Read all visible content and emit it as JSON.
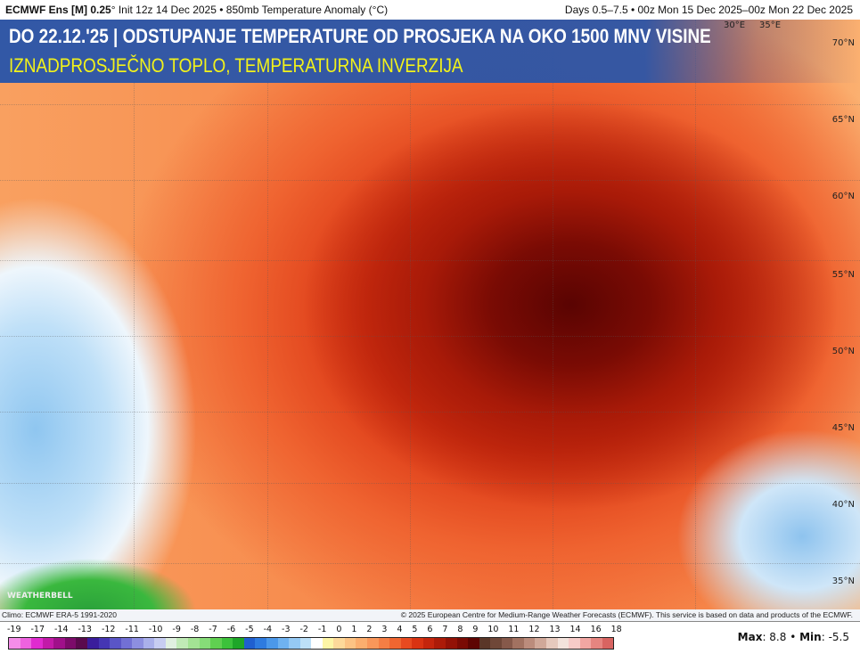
{
  "header": {
    "model": "ECMWF Ens [M] 0.25",
    "deg": "°",
    "init": " Init 12z 14 Dec 2025 • 850mb Temperature Anomaly (°C)",
    "range": "Days 0.5–7.5 • 00z Mon 15 Dec 2025–00z Mon 22 Dec 2025"
  },
  "banner": {
    "title": "DO 22.12.'25 | ODSTUPANJE TEMPERATURE OD PROSJEKA NA OKO 1500 MNV VISINE",
    "subtitle": "IZNADPROSJEČNO TOPLO, TEMPERATURNA INVERZIJA"
  },
  "map": {
    "lat_labels": [
      "70°N",
      "65°N",
      "60°N",
      "55°N",
      "50°N",
      "45°N",
      "40°N",
      "35°N"
    ],
    "lon_labels": [
      "30°E",
      "35°E"
    ],
    "watermark": "WEATHERBELL"
  },
  "credits": {
    "climo": "Climo: ECMWF ERA-5 1991-2020",
    "copyright": "© 2025 European Centre for Medium-Range Weather Forecasts (ECMWF). This service is based on data and products of the ECMWF."
  },
  "colorbar": {
    "labels": [
      "-19",
      "-17",
      "-14",
      "-13",
      "-12",
      "-11",
      "-10",
      "-9",
      "-8",
      "-7",
      "-6",
      "-5",
      "-4",
      "-3",
      "-2",
      "-1",
      "0",
      "1",
      "2",
      "3",
      "4",
      "5",
      "6",
      "7",
      "8",
      "9",
      "10",
      "11",
      "12",
      "13",
      "14",
      "16",
      "18"
    ],
    "colors": [
      "#f58de8",
      "#ee62df",
      "#e02bcf",
      "#c21aa8",
      "#a0108a",
      "#7c0b6a",
      "#5a0a4d",
      "#3a1d9c",
      "#4536b3",
      "#5a55c6",
      "#7270d4",
      "#8d8fe0",
      "#aab0ea",
      "#c7cdf1",
      "#e0f0e0",
      "#c0eab6",
      "#a3e394",
      "#86dc78",
      "#60d051",
      "#3cc23b",
      "#1ea628",
      "#1f5fd0",
      "#2e7be0",
      "#4b98ea",
      "#6fb2f0",
      "#95c9f4",
      "#bde0f8",
      "#ffffff",
      "#fdf5a6",
      "#fdd99a",
      "#fcc384",
      "#fbae6e",
      "#f9975a",
      "#f57e44",
      "#f06631",
      "#e84a20",
      "#d93312",
      "#c4250c",
      "#ac1b08",
      "#931206",
      "#7a0b04",
      "#5e0502",
      "#5a3628",
      "#6f4738",
      "#86594a",
      "#a27261",
      "#bb8c7c",
      "#d0a899",
      "#e6c9bd",
      "#f3e3dc",
      "#f7cbc8",
      "#f1a6a2",
      "#e68580",
      "#d86461"
    ]
  },
  "stats": {
    "max_label": "Max",
    "max": "8.8",
    "sep": " • ",
    "min_label": "Min",
    "min": "-5.5"
  }
}
